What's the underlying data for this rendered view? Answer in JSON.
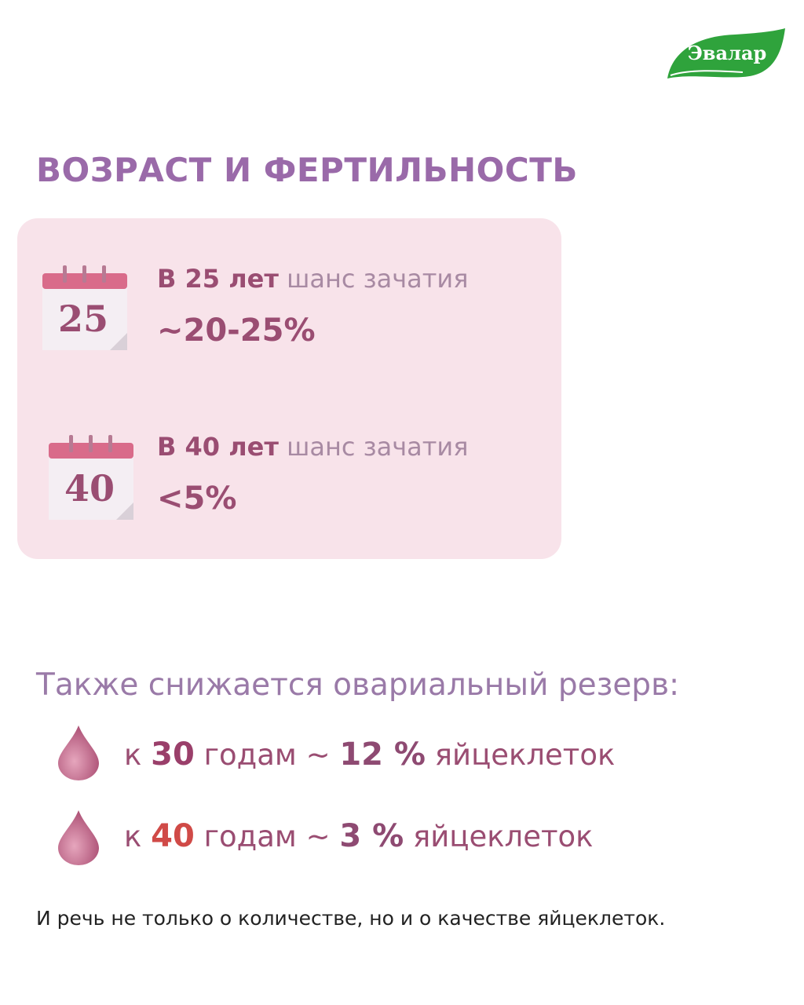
{
  "logo": "Эвалар",
  "title": "ВОЗРАСТ И ФЕРТИЛЬНОСТЬ",
  "card": {
    "items": [
      {
        "calendar": "25",
        "lead": "В 25 лет",
        "rest": "шанс зачатия",
        "value": "~20-25%"
      },
      {
        "calendar": "40",
        "lead": "В 40 лет",
        "rest": "шанс зачатия",
        "value": "<5%"
      }
    ]
  },
  "reserve": {
    "heading": "Также снижается овариальный резерв:",
    "items": [
      {
        "prefix": "к",
        "age": "30",
        "middle": "годам ~",
        "percent": "12 %",
        "suffix": "яйцеклеток"
      },
      {
        "prefix": "к",
        "age": "40",
        "middle": "годам ~",
        "percent": "3 %",
        "suffix": "яйцеклеток"
      }
    ]
  },
  "footer": "И речь не только о количестве, но и о качестве яйцеклеток."
}
